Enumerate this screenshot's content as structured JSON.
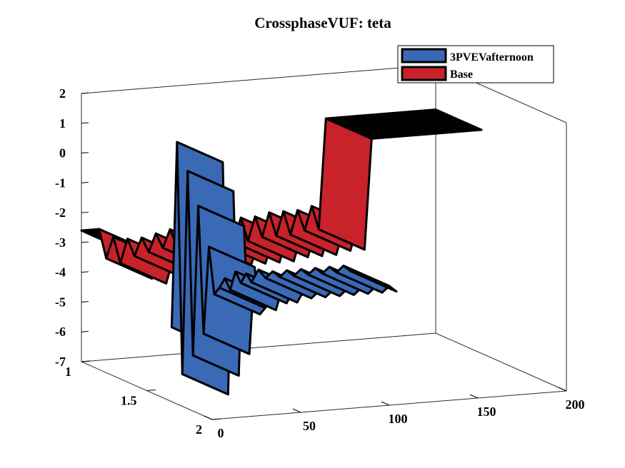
{
  "chart_data": {
    "type": "area",
    "title": "CrossphaseVUF: teta",
    "xlabel": "",
    "ylabel": "",
    "zlabel": "",
    "xlim": [
      0,
      200
    ],
    "ylim": [
      1,
      2
    ],
    "zlim": [
      -7,
      2
    ],
    "xticks": [
      "0",
      "50",
      "100",
      "150",
      "200"
    ],
    "yticks": [
      "1",
      "1.5",
      "2"
    ],
    "zticks": [
      "2",
      "1",
      "0",
      "-1",
      "-2",
      "-3",
      "-4",
      "-5",
      "-6",
      "-7"
    ],
    "grid": false,
    "box": true,
    "view": "3d-perspective",
    "legend_position": "top-right",
    "series": [
      {
        "name": "3PVEVafternoon",
        "color": "#3a69b6",
        "y": 2,
        "points": [
          [
            3,
            -4.6
          ],
          [
            6,
            1.6
          ],
          [
            9,
            -6.2
          ],
          [
            12,
            0.6
          ],
          [
            15,
            -5.6
          ],
          [
            18,
            -0.6
          ],
          [
            21,
            -4.9
          ],
          [
            24,
            -2.0
          ],
          [
            27,
            -3.6
          ],
          [
            30,
            -3.4
          ],
          [
            33,
            -3.1
          ],
          [
            36,
            -3.5
          ],
          [
            39,
            -2.9
          ],
          [
            42,
            -3.3
          ],
          [
            45,
            -3.0
          ],
          [
            48,
            -3.3
          ],
          [
            52,
            -2.9
          ],
          [
            56,
            -3.2
          ],
          [
            60,
            -3.0
          ],
          [
            64,
            -3.2
          ],
          [
            68,
            -3.0
          ],
          [
            72,
            -3.2
          ],
          [
            76,
            -3.0
          ],
          [
            80,
            -3.2
          ],
          [
            84,
            -3.0
          ],
          [
            88,
            -3.2
          ],
          [
            92,
            -3.0
          ],
          [
            96,
            -3.2
          ],
          [
            100,
            -3.0
          ],
          [
            104,
            -3.2
          ]
        ]
      },
      {
        "name": "Base",
        "color": "#c8232a",
        "y": 1,
        "points": [
          [
            0,
            -2.6
          ],
          [
            10,
            -2.6
          ],
          [
            14,
            -3.6
          ],
          [
            18,
            -2.9
          ],
          [
            22,
            -3.8
          ],
          [
            26,
            -3.0
          ],
          [
            30,
            -3.6
          ],
          [
            34,
            -3.0
          ],
          [
            38,
            -3.5
          ],
          [
            42,
            -2.9
          ],
          [
            46,
            -3.4
          ],
          [
            50,
            -2.8
          ],
          [
            54,
            -3.4
          ],
          [
            58,
            -2.8
          ],
          [
            62,
            -3.4
          ],
          [
            66,
            -2.8
          ],
          [
            70,
            -3.4
          ],
          [
            74,
            -2.7
          ],
          [
            78,
            -3.4
          ],
          [
            82,
            -2.7
          ],
          [
            86,
            -3.4
          ],
          [
            90,
            -2.6
          ],
          [
            94,
            -3.4
          ],
          [
            98,
            -2.6
          ],
          [
            102,
            -3.3
          ],
          [
            106,
            -2.5
          ],
          [
            110,
            -3.3
          ],
          [
            114,
            -2.5
          ],
          [
            118,
            -3.3
          ],
          [
            122,
            -2.5
          ],
          [
            126,
            -3.2
          ],
          [
            130,
            -2.4
          ],
          [
            134,
            -3.2
          ],
          [
            138,
            0.5
          ],
          [
            200,
            0.5
          ]
        ]
      }
    ]
  }
}
